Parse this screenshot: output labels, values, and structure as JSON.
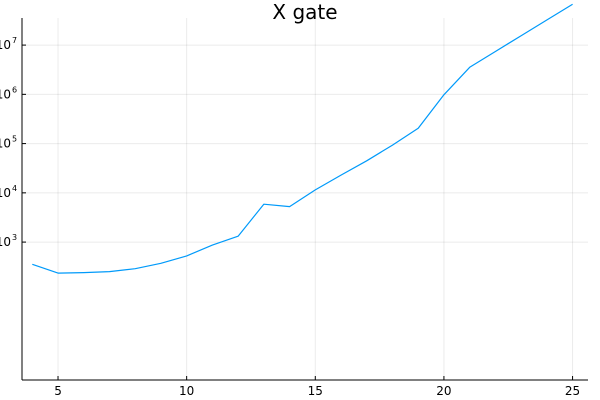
{
  "chart_data": {
    "type": "line",
    "title": "X gate",
    "xlabel": "",
    "ylabel": "",
    "xlim": [
      3.6,
      25.6
    ],
    "ylim": [
      0.2,
      7.55
    ],
    "y_scale": "log10",
    "grid": true,
    "legend": "none",
    "x_ticks": [
      {
        "value": 5,
        "label": "5"
      },
      {
        "value": 10,
        "label": "10"
      },
      {
        "value": 15,
        "label": "15"
      },
      {
        "value": 20,
        "label": "20"
      },
      {
        "value": 25,
        "label": "25"
      }
    ],
    "y_ticks": [
      {
        "value": 3,
        "label": "10",
        "exp": "3"
      },
      {
        "value": 4,
        "label": "10",
        "exp": "4"
      },
      {
        "value": 5,
        "label": "10",
        "exp": "5"
      },
      {
        "value": 6,
        "label": "10",
        "exp": "6"
      },
      {
        "value": 7,
        "label": "10",
        "exp": "7"
      }
    ],
    "series": [
      {
        "color": "#009AFA",
        "x": [
          4,
          5,
          6,
          7,
          8,
          9,
          10,
          11,
          12,
          13,
          14,
          15,
          16,
          17,
          18,
          19,
          20,
          21,
          22,
          23,
          24,
          25
        ],
        "y": [
          2.55,
          2.37,
          2.38,
          2.4,
          2.46,
          2.57,
          2.72,
          2.94,
          3.12,
          3.77,
          3.72,
          4.06,
          4.36,
          4.65,
          4.97,
          5.31,
          5.99,
          6.55,
          6.87,
          7.19,
          7.51,
          7.83
        ]
      }
    ]
  }
}
